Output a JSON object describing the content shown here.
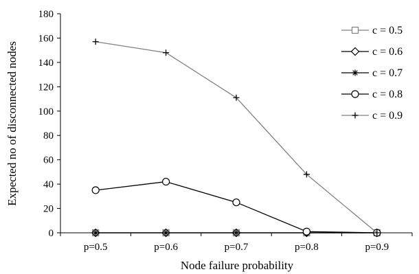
{
  "chart_data": {
    "type": "line",
    "title": "",
    "xlabel": "Node failure probability",
    "ylabel": "Expected no of disconnected nodes",
    "categories": [
      "p=0.5",
      "p=0.6",
      "p=0.7",
      "p=0.8",
      "p=0.9"
    ],
    "ylim": [
      0,
      180
    ],
    "yticks": [
      0,
      20,
      40,
      60,
      80,
      100,
      120,
      140,
      160,
      180
    ],
    "grid": false,
    "legend": "right",
    "series": [
      {
        "name": "c = 0.5",
        "marker": "square",
        "color": "#808080",
        "values": [
          0,
          0,
          0,
          0,
          0
        ]
      },
      {
        "name": "c = 0.6",
        "marker": "diamond",
        "color": "#000000",
        "values": [
          0,
          0,
          0,
          0,
          0
        ]
      },
      {
        "name": "c = 0.7",
        "marker": "asterisk",
        "color": "#000000",
        "values": [
          0,
          0,
          0,
          0,
          0
        ]
      },
      {
        "name": "c = 0.8",
        "marker": "circle",
        "color": "#000000",
        "values": [
          35,
          42,
          25,
          1,
          0
        ]
      },
      {
        "name": "c = 0.9",
        "marker": "plus",
        "color": "#808080",
        "values": [
          157,
          148,
          111,
          48,
          0
        ]
      }
    ]
  }
}
